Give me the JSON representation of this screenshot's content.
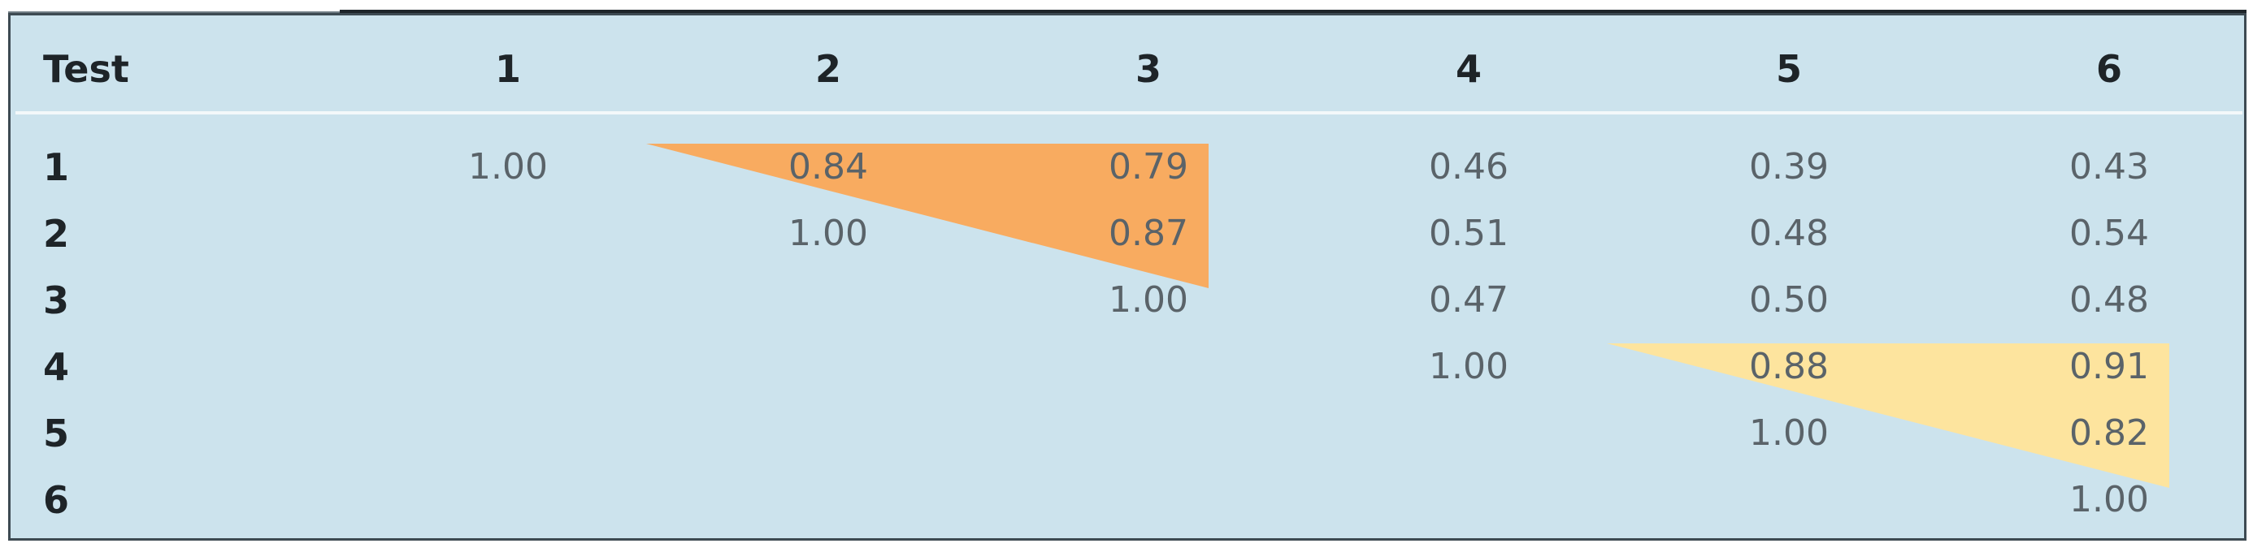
{
  "chart_data": {
    "type": "table",
    "header": "Test",
    "columns": [
      "1",
      "2",
      "3",
      "4",
      "5",
      "6"
    ],
    "rows": [
      {
        "label": "1",
        "values": [
          "1.00",
          "0.84",
          "0.79",
          "0.46",
          "0.39",
          "0.43"
        ]
      },
      {
        "label": "2",
        "values": [
          "",
          "1.00",
          "0.87",
          "0.51",
          "0.48",
          "0.54"
        ]
      },
      {
        "label": "3",
        "values": [
          "",
          "",
          "1.00",
          "0.47",
          "0.50",
          "0.48"
        ]
      },
      {
        "label": "4",
        "values": [
          "",
          "",
          "",
          "1.00",
          "0.88",
          "0.91"
        ]
      },
      {
        "label": "5",
        "values": [
          "",
          "",
          "",
          "",
          "1.00",
          "0.82"
        ]
      },
      {
        "label": "6",
        "values": [
          "",
          "",
          "",
          "",
          "",
          "1.00"
        ]
      }
    ],
    "highlight_groups": [
      {
        "color": "#f8ab60",
        "rows": [
          "1",
          "2"
        ],
        "columns": [
          "2",
          "3"
        ]
      },
      {
        "color": "#fde49e",
        "rows": [
          "4",
          "5"
        ],
        "columns": [
          "5",
          "6"
        ]
      }
    ]
  }
}
